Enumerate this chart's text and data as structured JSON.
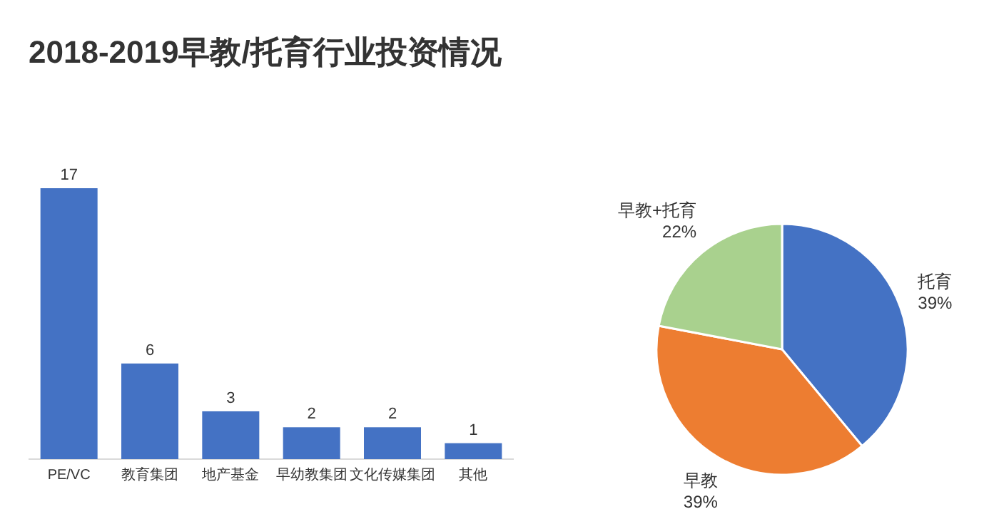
{
  "chart_data": [
    {
      "type": "bar",
      "title": "2018-2019早教/托育行业投资情况",
      "categories": [
        "PE/VC",
        "教育集团",
        "地产基金",
        "早幼教集团",
        "文化传媒集团",
        "其他"
      ],
      "values": [
        17,
        6,
        3,
        2,
        2,
        1
      ],
      "color": "#4472c4",
      "data_labels": true
    },
    {
      "type": "pie",
      "categories": [
        "托育",
        "早教",
        "早教+托育"
      ],
      "values": [
        39,
        39,
        22
      ],
      "value_labels": [
        "39%",
        "39%",
        "22%"
      ],
      "colors": [
        "#4472c4",
        "#ed7d31",
        "#a9d18e"
      ]
    }
  ]
}
